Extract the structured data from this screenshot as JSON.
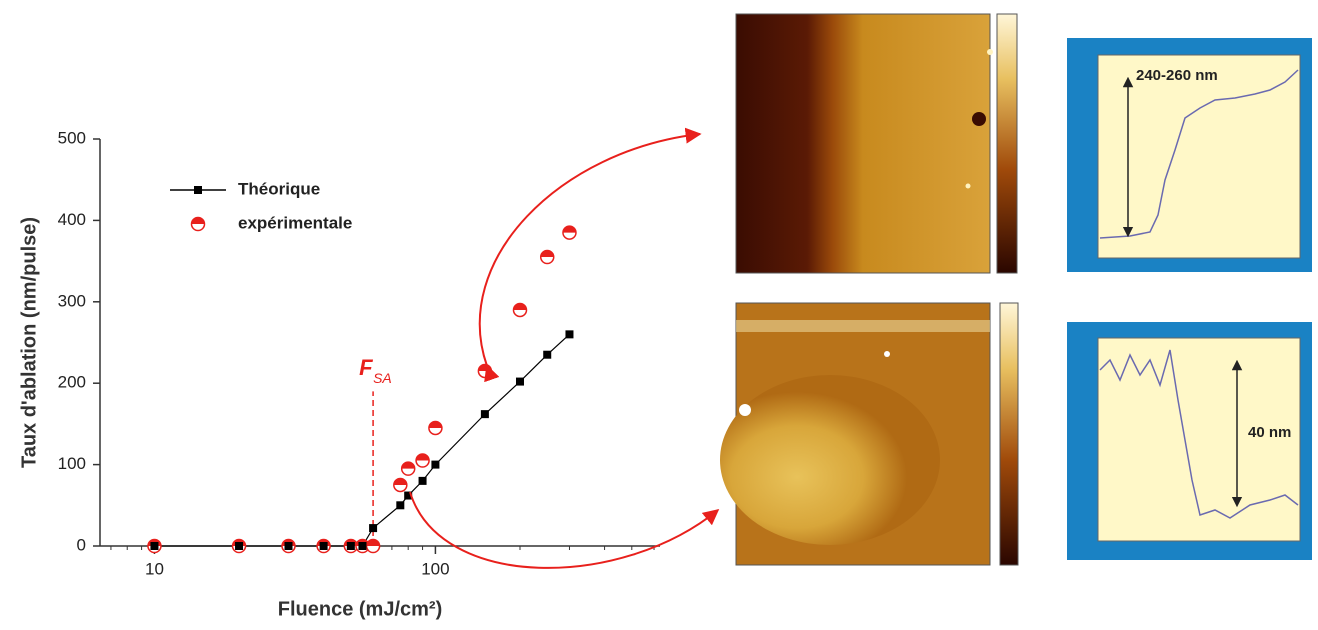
{
  "chart_data": {
    "type": "line",
    "x_label": "Fluence (mJ/cm²)",
    "y_label": "Taux d'ablation (nm/pulse)",
    "x_log": true,
    "xlim": [
      6.4,
      630
    ],
    "xticks": [
      10,
      100
    ],
    "xminorticks": [
      7,
      8,
      9,
      20,
      30,
      40,
      50,
      60,
      70,
      80,
      90,
      200,
      300,
      400,
      500,
      600
    ],
    "ylim": [
      0,
      500
    ],
    "yticks": [
      0,
      100,
      200,
      300,
      400,
      500
    ],
    "legend": "upper left",
    "series": [
      {
        "name": "Théorique",
        "color": "#000000",
        "marker": "square",
        "line": true,
        "x": [
          10,
          20,
          30,
          40,
          50,
          55,
          60,
          75,
          80,
          90,
          100,
          150,
          200,
          250,
          300
        ],
        "values": [
          0,
          0,
          0,
          0,
          0,
          0,
          22,
          50,
          62,
          80,
          100,
          162,
          202,
          235,
          260
        ]
      },
      {
        "name": "expérimentale",
        "color": "#e8201c",
        "marker": "half-circle",
        "line": false,
        "x": [
          10,
          20,
          30,
          40,
          50,
          55,
          60,
          75,
          80,
          90,
          100,
          150,
          200,
          250,
          300
        ],
        "values": [
          0,
          0,
          0,
          0,
          0,
          0,
          0,
          75,
          95,
          105,
          145,
          215,
          290,
          355,
          385
        ]
      }
    ],
    "threshold": {
      "label": "F",
      "subscript": "SA",
      "x": 60,
      "y": 190,
      "color": "#e8201c"
    },
    "profiles": [
      "240-260 nm",
      "40 nm"
    ]
  }
}
